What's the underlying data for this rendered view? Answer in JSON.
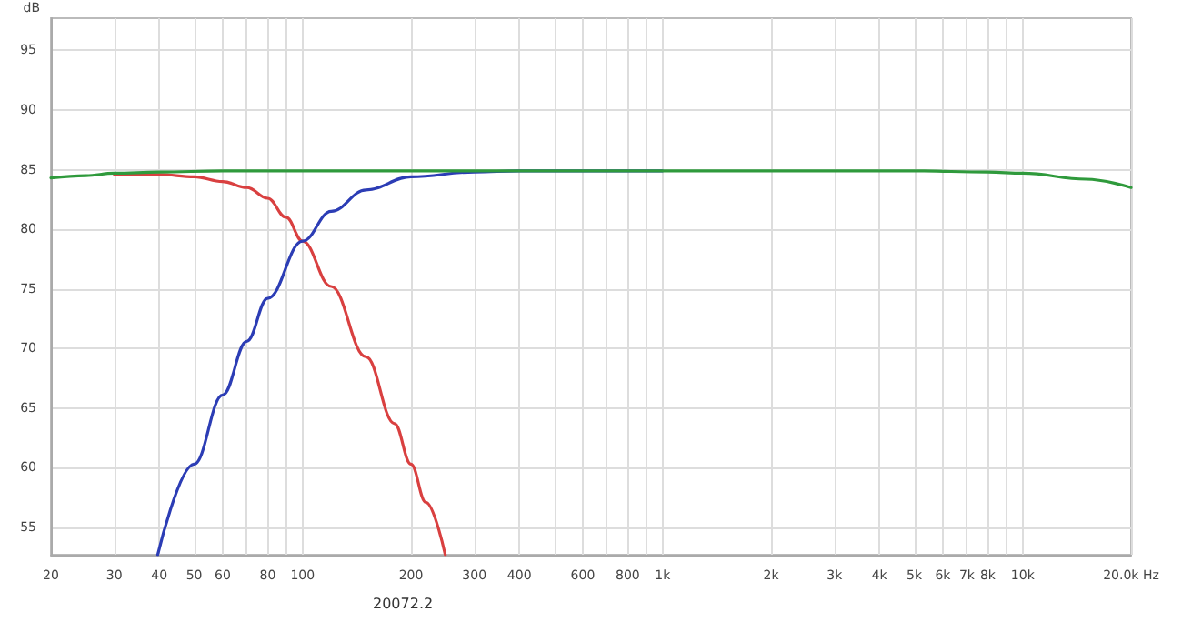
{
  "chart_data": {
    "type": "line",
    "ylabel": "dB",
    "log": "x",
    "grid": true,
    "marker": "none",
    "line_style": "solid",
    "xlim": [
      20,
      20000
    ],
    "ylim": [
      52.7,
      97.7
    ],
    "xticks": [
      20,
      30,
      40,
      50,
      60,
      {
        "value": 70,
        "label": null
      },
      80,
      {
        "value": 90,
        "label": null
      },
      100,
      200,
      300,
      400,
      {
        "value": 500,
        "label": null
      },
      600,
      {
        "value": 700,
        "label": null
      },
      800,
      {
        "value": 900,
        "label": null
      },
      {
        "value": 1000,
        "label": "1k"
      },
      {
        "value": 2000,
        "label": "2k"
      },
      {
        "value": 3000,
        "label": "3k"
      },
      {
        "value": 4000,
        "label": "4k"
      },
      {
        "value": 5000,
        "label": "5k"
      },
      {
        "value": 6000,
        "label": "6k"
      },
      {
        "value": 7000,
        "label": "7k"
      },
      {
        "value": 8000,
        "label": "8k"
      },
      {
        "value": 9000,
        "label": null
      },
      {
        "value": 10000,
        "label": "10k"
      },
      {
        "value": 20000,
        "label": "20.0k Hz"
      }
    ],
    "yticks": [
      55,
      60,
      65,
      70,
      75,
      80,
      85,
      90,
      95
    ],
    "annotations": [
      "20072.2"
    ],
    "series": [
      {
        "color": "#d94040",
        "x": [
          30,
          40,
          50,
          60,
          70,
          80,
          90,
          100,
          120,
          150,
          180,
          200,
          220,
          249
        ],
        "values": [
          84.6,
          84.6,
          84.4,
          84.0,
          83.5,
          82.6,
          81.0,
          79.0,
          75.2,
          69.3,
          63.7,
          60.3,
          57.1,
          52.7
        ]
      },
      {
        "color": "#2c3db5",
        "x": [
          39.6,
          50,
          60,
          70,
          80,
          100,
          120,
          150,
          200,
          300,
          400,
          1000
        ],
        "values": [
          52.7,
          60.3,
          66.1,
          70.6,
          74.2,
          79.0,
          81.5,
          83.3,
          84.4,
          84.8,
          84.9,
          84.9
        ]
      },
      {
        "color": "#2f9a3c",
        "x": [
          20,
          25,
          30,
          40,
          60,
          1000,
          5000,
          8000,
          10000,
          15000,
          20000
        ],
        "values": [
          84.3,
          84.5,
          84.7,
          84.8,
          84.9,
          84.9,
          84.9,
          84.8,
          84.7,
          84.2,
          83.5
        ]
      }
    ]
  }
}
